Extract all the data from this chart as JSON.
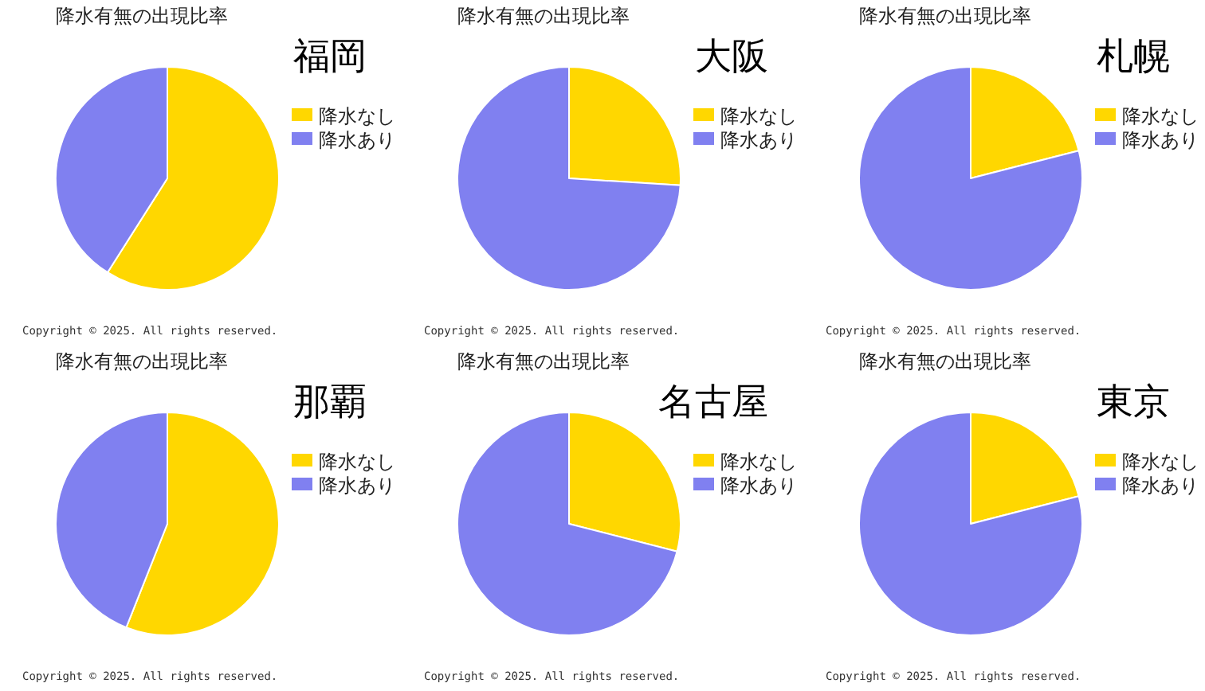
{
  "chart_data": [
    {
      "type": "pie",
      "title": "降水有無の出現比率",
      "subtitle": "福岡",
      "categories": [
        "降水なし",
        "降水あり"
      ],
      "values": [
        59,
        41
      ],
      "colors": [
        "#ffd700",
        "#8080f0"
      ],
      "legend": "right",
      "annotations": [
        "Copyright ©  2025. All rights reserved."
      ]
    },
    {
      "type": "pie",
      "title": "降水有無の出現比率",
      "subtitle": "大阪",
      "categories": [
        "降水なし",
        "降水あり"
      ],
      "values": [
        26,
        74
      ],
      "colors": [
        "#ffd700",
        "#8080f0"
      ],
      "legend": "right",
      "annotations": [
        "Copyright ©  2025. All rights reserved."
      ]
    },
    {
      "type": "pie",
      "title": "降水有無の出現比率",
      "subtitle": "札幌",
      "categories": [
        "降水なし",
        "降水あり"
      ],
      "values": [
        21,
        79
      ],
      "colors": [
        "#ffd700",
        "#8080f0"
      ],
      "legend": "right",
      "annotations": [
        "Copyright ©  2025. All rights reserved."
      ]
    },
    {
      "type": "pie",
      "title": "降水有無の出現比率",
      "subtitle": "那覇",
      "categories": [
        "降水なし",
        "降水あり"
      ],
      "values": [
        56,
        44
      ],
      "colors": [
        "#ffd700",
        "#8080f0"
      ],
      "legend": "right",
      "annotations": [
        "Copyright ©  2025. All rights reserved."
      ]
    },
    {
      "type": "pie",
      "title": "降水有無の出現比率",
      "subtitle": "名古屋",
      "categories": [
        "降水なし",
        "降水あり"
      ],
      "values": [
        29,
        71
      ],
      "colors": [
        "#ffd700",
        "#8080f0"
      ],
      "legend": "right",
      "annotations": [
        "Copyright ©  2025. All rights reserved."
      ]
    },
    {
      "type": "pie",
      "title": "降水有無の出現比率",
      "subtitle": "東京",
      "categories": [
        "降水なし",
        "降水あり"
      ],
      "values": [
        21,
        79
      ],
      "colors": [
        "#ffd700",
        "#8080f0"
      ],
      "legend": "right",
      "annotations": [
        "Copyright ©  2025. All rights reserved."
      ]
    }
  ]
}
